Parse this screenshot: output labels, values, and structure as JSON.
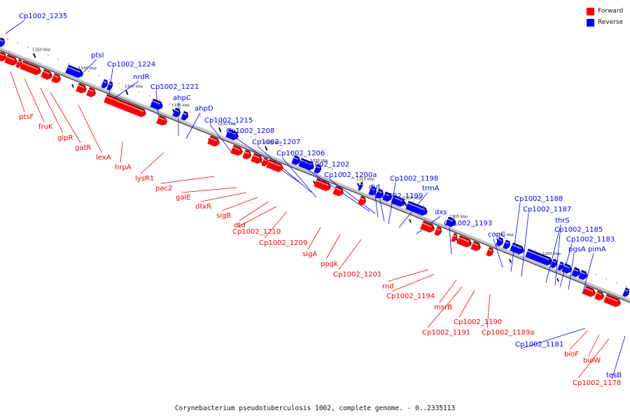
{
  "caption": "Corynebacterium pseudotuberculosis 1002, complete genome. - 0..2335113",
  "legend": {
    "forward_label": "Forward",
    "reverse_label": "Reverse",
    "forward_color": "#ff0000",
    "reverse_color": "#0000ff"
  },
  "ticks": [
    "1350 kbp",
    "1345 kbp",
    "1340 kbp",
    "1335 kbp",
    "1330 kbp",
    "1325 kbp",
    "1320 kbp",
    "1315 kbp",
    "1310 kbp",
    "1305 kbp",
    "1300 kbp",
    "1295 kbp"
  ],
  "reverse_genes": [
    "Cp1002_1235",
    "ptsI",
    "Cp1002_1224",
    "nrdR",
    "Cp1002_1221",
    "ahpC",
    "ahpD",
    "Cp1002_1215",
    "Cp1002_1208",
    "Cp1002_1207",
    "Cp1002_1206",
    "Cp1002_1202",
    "Cp1002_1200a",
    "dut",
    "Cp1002_1199",
    "Cp1002_1198",
    "trmA",
    "dxs",
    "Cp1002_1193",
    "copC",
    "Cp1002_1188",
    "Cp1002_1187",
    "thrS",
    "Cp1002_1185",
    "Cp1002_1183",
    "pgsA",
    "pimA",
    "Cp1002_1181",
    "tesB"
  ],
  "forward_genes": [
    "ptsF",
    "fruK",
    "glpR",
    "gatR",
    "lexA",
    "hrpA",
    "lysR1",
    "pac2",
    "galE",
    "dtxR",
    "sigB",
    "dtd",
    "Cp1002_1210",
    "Cp1002_1209",
    "sigA",
    "ppgk",
    "Cp1002_1201",
    "rnd",
    "Cp1002_1194",
    "msrB",
    "Cp1002_1191",
    "Cp1002_1190",
    "Cp1002_1189a",
    "bioF",
    "bioW",
    "Cp1002_1178"
  ]
}
